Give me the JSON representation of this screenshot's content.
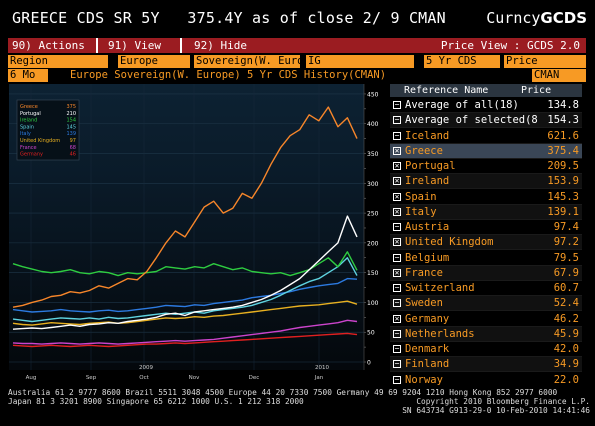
{
  "header": {
    "security": "GREECE CDS SR 5Y",
    "quote": "375.4Y as of close  2/ 9 CMAN",
    "brand_prefix": "Curncy",
    "brand_bold": "GCDS"
  },
  "menu": {
    "actions": "90) Actions",
    "view": "91) View",
    "hide": "92) Hide",
    "price_view": "Price View : GCDS 2.0"
  },
  "selectors": {
    "region_label": "Region",
    "region_value": "Europe",
    "sector_value": "Sovereign(W. Euro",
    "grade_value": "IG",
    "tenor_value": "5 Yr CDS",
    "metric_value": "Price"
  },
  "title_row": {
    "period": "6 Mo",
    "title": "Europe  Sovereign(W. Europe)  5 Yr CDS History(CMAN)",
    "source": "CMAN"
  },
  "legend": [
    {
      "name": "Greece",
      "value": "375",
      "color": "#f7862a"
    },
    {
      "name": "Portugal",
      "value": "210",
      "color": "#ffffff"
    },
    {
      "name": "Ireland",
      "value": "154",
      "color": "#2ecc40"
    },
    {
      "name": "Spain",
      "value": "145",
      "color": "#5fd3e0"
    },
    {
      "name": "Italy",
      "value": "139",
      "color": "#2c7ae0"
    },
    {
      "name": "United Kingdom",
      "value": "97",
      "color": "#e8b020"
    },
    {
      "name": "France",
      "value": "68",
      "color": "#cc44cc"
    },
    {
      "name": "Germany",
      "value": "46",
      "color": "#e02020"
    }
  ],
  "chart_data": {
    "type": "line",
    "x_labels": [
      "Aug",
      "Sep",
      "Oct",
      "Nov",
      "Dec",
      "Jan"
    ],
    "year_labels": [
      "2009",
      "2010"
    ],
    "yticks": [
      0,
      25,
      50,
      75,
      100,
      125,
      150,
      175,
      200,
      225,
      250,
      275,
      300,
      325,
      350,
      375,
      400,
      425,
      450
    ],
    "ylim": [
      0,
      460
    ],
    "series": [
      {
        "name": "Greece",
        "color": "#f7862a",
        "values": [
          92,
          95,
          100,
          104,
          110,
          112,
          118,
          116,
          120,
          128,
          124,
          132,
          140,
          138,
          152,
          175,
          200,
          220,
          210,
          235,
          260,
          270,
          250,
          258,
          283,
          275,
          300,
          332,
          360,
          380,
          390,
          415,
          405,
          428,
          395,
          410,
          375
        ]
      },
      {
        "name": "Portugal",
        "color": "#ffffff",
        "values": [
          55,
          56,
          57,
          56,
          58,
          60,
          62,
          60,
          63,
          64,
          66,
          65,
          68,
          70,
          72,
          75,
          80,
          82,
          78,
          84,
          86,
          88,
          90,
          92,
          95,
          100,
          105,
          112,
          120,
          130,
          140,
          155,
          170,
          185,
          200,
          245,
          210
        ]
      },
      {
        "name": "Ireland",
        "color": "#2ecc40",
        "values": [
          165,
          160,
          156,
          152,
          150,
          152,
          155,
          150,
          148,
          152,
          150,
          145,
          150,
          148,
          150,
          152,
          160,
          158,
          156,
          160,
          158,
          165,
          160,
          155,
          158,
          152,
          150,
          148,
          150,
          145,
          150,
          155,
          165,
          175,
          160,
          185,
          154
        ]
      },
      {
        "name": "Spain",
        "color": "#5fd3e0",
        "values": [
          72,
          70,
          68,
          70,
          72,
          74,
          73,
          72,
          74,
          72,
          75,
          73,
          74,
          76,
          78,
          80,
          82,
          80,
          82,
          84,
          82,
          86,
          88,
          90,
          92,
          95,
          100,
          105,
          112,
          120,
          128,
          135,
          140,
          150,
          160,
          175,
          145
        ]
      },
      {
        "name": "Italy",
        "color": "#2c7ae0",
        "values": [
          88,
          86,
          84,
          85,
          86,
          88,
          86,
          85,
          84,
          86,
          87,
          85,
          86,
          88,
          90,
          92,
          95,
          94,
          93,
          96,
          95,
          98,
          100,
          102,
          104,
          108,
          110,
          112,
          115,
          118,
          122,
          125,
          128,
          130,
          132,
          140,
          139
        ]
      },
      {
        "name": "United Kingdom",
        "color": "#e8b020",
        "values": [
          65,
          63,
          62,
          64,
          66,
          65,
          64,
          63,
          65,
          66,
          67,
          65,
          66,
          68,
          70,
          72,
          74,
          73,
          74,
          76,
          75,
          77,
          78,
          80,
          82,
          84,
          86,
          88,
          90,
          92,
          94,
          95,
          96,
          98,
          100,
          102,
          97
        ]
      },
      {
        "name": "France",
        "color": "#cc44cc",
        "values": [
          32,
          31,
          31,
          30,
          31,
          32,
          31,
          30,
          31,
          32,
          31,
          30,
          31,
          32,
          33,
          34,
          35,
          36,
          35,
          36,
          37,
          38,
          40,
          42,
          44,
          46,
          48,
          50,
          52,
          55,
          58,
          60,
          62,
          64,
          66,
          70,
          68
        ]
      },
      {
        "name": "Germany",
        "color": "#e02020",
        "values": [
          28,
          27,
          26,
          27,
          28,
          27,
          26,
          27,
          28,
          27,
          26,
          27,
          28,
          29,
          30,
          30,
          31,
          32,
          31,
          32,
          33,
          34,
          35,
          36,
          37,
          38,
          39,
          40,
          41,
          42,
          43,
          44,
          45,
          46,
          47,
          48,
          46
        ]
      }
    ]
  },
  "list": {
    "col_name": "Reference Name",
    "col_price": "Price",
    "rows": [
      {
        "box": "−",
        "name": "Average of all(18)",
        "value": "134.8",
        "color": "#ffffff"
      },
      {
        "box": "−",
        "name": "Average of selected(8",
        "value": "154.3",
        "color": "#ffffff"
      },
      {
        "box": "−",
        "name": "Iceland",
        "value": "621.6",
        "color": "#f79a24"
      },
      {
        "box": "✕",
        "name": "Greece",
        "value": "375.4",
        "color": "#f79a24"
      },
      {
        "box": "✕",
        "name": "Portugal",
        "value": "209.5",
        "color": "#f79a24"
      },
      {
        "box": "✕",
        "name": "Ireland",
        "value": "153.9",
        "color": "#f79a24"
      },
      {
        "box": "✕",
        "name": "Spain",
        "value": "145.3",
        "color": "#f79a24"
      },
      {
        "box": "✕",
        "name": "Italy",
        "value": "139.1",
        "color": "#f79a24"
      },
      {
        "box": "−",
        "name": "Austria",
        "value": "97.4",
        "color": "#f79a24"
      },
      {
        "box": "✕",
        "name": "United Kingdom",
        "value": "97.2",
        "color": "#f79a24"
      },
      {
        "box": "−",
        "name": "Belgium",
        "value": "79.5",
        "color": "#f79a24"
      },
      {
        "box": "✕",
        "name": "France",
        "value": "67.9",
        "color": "#f79a24"
      },
      {
        "box": "−",
        "name": "Switzerland",
        "value": "60.7",
        "color": "#f79a24"
      },
      {
        "box": "−",
        "name": "Sweden",
        "value": "52.4",
        "color": "#f79a24"
      },
      {
        "box": "✕",
        "name": "Germany",
        "value": "46.2",
        "color": "#f79a24"
      },
      {
        "box": "−",
        "name": "Netherlands",
        "value": "45.9",
        "color": "#f79a24"
      },
      {
        "box": "−",
        "name": "Denmark",
        "value": "42.0",
        "color": "#f79a24"
      },
      {
        "box": "−",
        "name": "Finland",
        "value": "34.9",
        "color": "#f79a24"
      },
      {
        "box": "−",
        "name": "Norway",
        "value": "22.0",
        "color": "#f79a24"
      }
    ]
  },
  "footer": {
    "line1": "Australia 61 2 9777 8600 Brazil 5511 3048 4500 Europe 44 20 7330 7500 Germany 49 69 9204 1210 Hong Kong 852 2977 6000",
    "line2_left": "Japan 81 3 3201 8900         Singapore 65 6212 1000      U.S. 1 212 318 2000",
    "line2_right": "Copyright 2010 Bloomberg Finance L.P.",
    "line3": "SN 643734 G913-29-0 10-Feb-2010 14:41:46"
  }
}
